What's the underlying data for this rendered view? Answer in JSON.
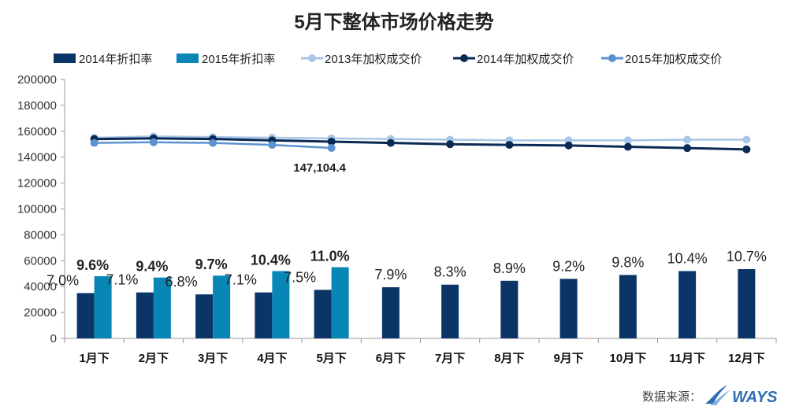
{
  "title": "5月下整体市场价格走势",
  "source": "数据来源：",
  "logo_text": "WAYS",
  "colors": {
    "bar2014": "#0a3566",
    "bar2015": "#0886b6",
    "line2013": "#a8c6e6",
    "line2014": "#0a2a55",
    "line2015": "#5b93d1",
    "axis": "#999999"
  },
  "chart_data": {
    "type": "bar+line",
    "categories": [
      "1月下",
      "2月下",
      "3月下",
      "4月下",
      "5月下",
      "6月下",
      "7月下",
      "8月下",
      "9月下",
      "10月下",
      "11月下",
      "12月下"
    ],
    "ylim": [
      0,
      200000
    ],
    "yticks": [
      0,
      20000,
      40000,
      60000,
      80000,
      100000,
      120000,
      140000,
      160000,
      180000,
      200000
    ],
    "legend": [
      "2014年折扣率",
      "2015年折扣率",
      "2013年加权成交价",
      "2014年加权成交价",
      "2015年加权成交价"
    ],
    "bar_series": [
      {
        "name": "2014年折扣率",
        "values": [
          35000,
          35500,
          34000,
          35500,
          37500,
          39500,
          41500,
          44500,
          46000,
          49000,
          52000,
          53500
        ],
        "labels": [
          "7.0%",
          "7.1%",
          "6.8%",
          "7.1%",
          "7.5%",
          "7.9%",
          "8.3%",
          "8.9%",
          "9.2%",
          "9.8%",
          "10.4%",
          "10.7%"
        ]
      },
      {
        "name": "2015年折扣率",
        "values": [
          48000,
          47000,
          48500,
          52000,
          55000,
          null,
          null,
          null,
          null,
          null,
          null,
          null
        ],
        "labels": [
          "9.6%",
          "9.4%",
          "9.7%",
          "10.4%",
          "11.0%"
        ]
      }
    ],
    "line_series": [
      {
        "name": "2013年加权成交价",
        "values": [
          155000,
          156000,
          155500,
          155000,
          154500,
          154000,
          153500,
          153000,
          153000,
          153000,
          153500,
          153500
        ]
      },
      {
        "name": "2014年加权成交价",
        "values": [
          154000,
          154500,
          154000,
          153000,
          152000,
          151000,
          150000,
          149500,
          149000,
          148000,
          147000,
          146000
        ]
      },
      {
        "name": "2015年加权成交价",
        "values": [
          151000,
          151500,
          151000,
          149500,
          147104.4,
          null,
          null,
          null,
          null,
          null,
          null,
          null
        ]
      }
    ],
    "annotation": {
      "text": "147,104.4",
      "category": "5月下",
      "series": "2015年加权成交价"
    }
  }
}
